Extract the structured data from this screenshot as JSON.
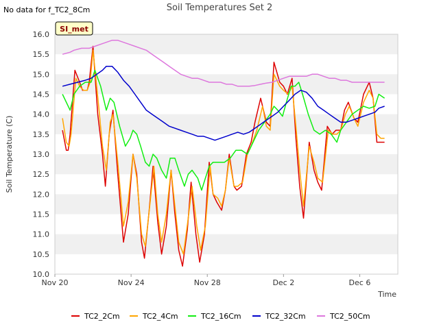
{
  "note": "No data for f_TC2_8Cm",
  "badge": "SI_met",
  "colors": {
    "band": "#f0f0f0",
    "axis": "#cccccc",
    "badge_fill": "#ffffc8",
    "TC2_2Cm": "#dd0000",
    "TC2_4Cm": "#ffa500",
    "TC2_16Cm": "#11ee11",
    "TC2_32Cm": "#0000cc",
    "TC2_50Cm": "#dd77dd"
  },
  "chart_data": {
    "type": "line",
    "title": "Soil Temperatures Set 2",
    "xlabel": "Time",
    "ylabel": "Soil Temperature (C)",
    "xlim": [
      0,
      18
    ],
    "ylim": [
      10.0,
      16.0
    ],
    "x_ticks": [
      {
        "x": 0,
        "label": "Nov 20"
      },
      {
        "x": 4,
        "label": "Nov 24"
      },
      {
        "x": 8,
        "label": "Nov 28"
      },
      {
        "x": 12,
        "label": "Dec 2"
      },
      {
        "x": 16,
        "label": "Dec 6"
      }
    ],
    "y_ticks": [
      "10.0",
      "10.5",
      "11.0",
      "11.5",
      "12.0",
      "12.5",
      "13.0",
      "13.5",
      "14.0",
      "14.5",
      "15.0",
      "15.5",
      "16.0"
    ],
    "grid": "horizontal bands",
    "legend": "bottom",
    "series": [
      {
        "name": "TC2_2Cm",
        "color": "#dd0000",
        "x": [
          0.4,
          0.6,
          0.7,
          0.8,
          1.05,
          1.3,
          1.45,
          1.7,
          1.8,
          2.0,
          2.25,
          2.5,
          2.65,
          2.85,
          3.05,
          3.3,
          3.6,
          3.85,
          4.1,
          4.3,
          4.55,
          4.7,
          4.95,
          5.15,
          5.4,
          5.6,
          5.85,
          6.1,
          6.3,
          6.5,
          6.7,
          6.95,
          7.15,
          7.4,
          7.6,
          7.85,
          8.1,
          8.3,
          8.5,
          8.75,
          8.95,
          9.15,
          9.4,
          9.55,
          9.8,
          10.05,
          10.3,
          10.5,
          10.8,
          11.1,
          11.3,
          11.5,
          11.8,
          12.0,
          12.2,
          12.45,
          12.65,
          12.85,
          13.05,
          13.35,
          13.6,
          13.8,
          14.0,
          14.3,
          14.55,
          14.75,
          15.0,
          15.2,
          15.4,
          15.7,
          15.9,
          16.2,
          16.5,
          16.7,
          16.9,
          17.1,
          17.3
        ],
        "y": [
          13.6,
          13.1,
          13.1,
          13.5,
          15.1,
          14.8,
          14.6,
          14.6,
          14.8,
          15.7,
          14.0,
          13.0,
          12.2,
          13.5,
          14.1,
          12.5,
          10.8,
          11.5,
          13.0,
          12.5,
          10.8,
          10.4,
          11.6,
          12.7,
          11.3,
          10.5,
          11.2,
          12.6,
          11.5,
          10.6,
          10.2,
          11.1,
          12.3,
          11.0,
          10.3,
          11.0,
          12.8,
          12.0,
          11.8,
          11.6,
          12.1,
          13.0,
          12.2,
          12.1,
          12.2,
          13.0,
          13.3,
          13.8,
          14.4,
          13.8,
          13.7,
          15.3,
          14.8,
          14.7,
          14.5,
          14.9,
          13.4,
          12.2,
          11.4,
          13.3,
          12.6,
          12.3,
          12.1,
          13.7,
          13.5,
          13.6,
          13.6,
          14.1,
          14.3,
          13.9,
          13.8,
          14.5,
          14.8,
          14.4,
          13.3,
          13.3,
          13.3
        ]
      },
      {
        "name": "TC2_4Cm",
        "color": "#ffa500",
        "x": [
          0.4,
          0.6,
          0.75,
          0.85,
          1.1,
          1.3,
          1.5,
          1.7,
          1.85,
          2.0,
          2.3,
          2.5,
          2.7,
          2.9,
          3.05,
          3.3,
          3.6,
          3.85,
          4.1,
          4.3,
          4.55,
          4.75,
          5.0,
          5.2,
          5.4,
          5.6,
          5.85,
          6.1,
          6.3,
          6.5,
          6.75,
          7.0,
          7.2,
          7.45,
          7.65,
          7.9,
          8.15,
          8.3,
          8.55,
          8.75,
          8.95,
          9.15,
          9.4,
          9.6,
          9.85,
          10.1,
          10.3,
          10.6,
          10.9,
          11.1,
          11.3,
          11.5,
          11.8,
          12.0,
          12.25,
          12.45,
          12.65,
          12.85,
          13.05,
          13.35,
          13.6,
          13.8,
          14.05,
          14.35,
          14.6,
          14.8,
          15.0,
          15.25,
          15.45,
          15.7,
          15.9,
          16.2,
          16.5,
          16.7,
          16.9,
          17.1,
          17.3
        ],
        "y": [
          13.9,
          13.3,
          13.2,
          13.5,
          14.9,
          14.7,
          14.6,
          14.6,
          14.8,
          15.6,
          14.2,
          13.2,
          12.6,
          13.8,
          14.0,
          12.8,
          11.2,
          11.8,
          13.0,
          12.4,
          11.0,
          10.7,
          11.8,
          12.7,
          11.5,
          10.8,
          11.5,
          12.6,
          11.7,
          10.8,
          10.5,
          11.4,
          12.2,
          11.2,
          10.6,
          11.2,
          12.7,
          12.0,
          11.9,
          11.7,
          12.1,
          12.9,
          12.2,
          12.2,
          12.3,
          13.0,
          13.2,
          13.6,
          14.2,
          13.7,
          13.6,
          15.0,
          14.7,
          14.6,
          14.5,
          14.7,
          13.7,
          12.6,
          11.7,
          13.2,
          12.8,
          12.4,
          12.3,
          13.6,
          13.5,
          13.5,
          13.6,
          14.0,
          14.2,
          13.9,
          13.7,
          14.3,
          14.6,
          14.4,
          13.5,
          13.4,
          13.4
        ]
      },
      {
        "name": "TC2_16Cm",
        "color": "#11ee11",
        "x": [
          0.4,
          0.8,
          1.0,
          1.3,
          1.6,
          1.9,
          2.1,
          2.4,
          2.7,
          2.9,
          3.1,
          3.4,
          3.7,
          3.95,
          4.1,
          4.3,
          4.5,
          4.75,
          4.95,
          5.15,
          5.35,
          5.6,
          5.85,
          6.05,
          6.3,
          6.5,
          6.8,
          7.0,
          7.2,
          7.5,
          7.7,
          7.9,
          8.1,
          8.3,
          8.6,
          8.9,
          9.2,
          9.5,
          9.8,
          10.1,
          10.4,
          10.7,
          11.0,
          11.3,
          11.5,
          11.7,
          11.95,
          12.15,
          12.4,
          12.6,
          12.8,
          13.0,
          13.3,
          13.6,
          13.9,
          14.2,
          14.5,
          14.8,
          15.0,
          15.3,
          15.6,
          15.9,
          16.2,
          16.5,
          16.8,
          17.0,
          17.3
        ],
        "y": [
          14.5,
          14.1,
          14.5,
          14.7,
          14.8,
          14.8,
          15.1,
          14.7,
          14.1,
          14.4,
          14.3,
          13.7,
          13.2,
          13.4,
          13.6,
          13.5,
          13.2,
          12.8,
          12.7,
          13.0,
          12.9,
          12.6,
          12.4,
          12.9,
          12.9,
          12.6,
          12.2,
          12.5,
          12.6,
          12.4,
          12.1,
          12.4,
          12.7,
          12.8,
          12.8,
          12.8,
          12.9,
          13.1,
          13.1,
          13.0,
          13.3,
          13.6,
          13.8,
          14.0,
          14.2,
          14.1,
          13.95,
          14.3,
          14.7,
          14.7,
          14.8,
          14.5,
          14.0,
          13.6,
          13.5,
          13.6,
          13.5,
          13.3,
          13.6,
          13.8,
          14.0,
          14.1,
          14.2,
          14.15,
          14.2,
          14.5,
          14.4
        ]
      },
      {
        "name": "TC2_32Cm",
        "color": "#0000cc",
        "x": [
          0.4,
          0.8,
          1.2,
          1.6,
          1.9,
          2.2,
          2.5,
          2.7,
          3.0,
          3.3,
          3.6,
          3.9,
          4.2,
          4.5,
          4.8,
          5.1,
          5.4,
          5.7,
          6.0,
          6.3,
          6.6,
          6.9,
          7.2,
          7.5,
          7.8,
          8.1,
          8.4,
          8.7,
          9.0,
          9.3,
          9.6,
          9.9,
          10.2,
          10.5,
          10.8,
          11.1,
          11.4,
          11.7,
          12.0,
          12.3,
          12.6,
          12.9,
          13.2,
          13.5,
          13.8,
          14.1,
          14.4,
          14.7,
          15.0,
          15.3,
          15.6,
          15.9,
          16.2,
          16.5,
          16.8,
          17.0,
          17.3
        ],
        "y": [
          14.7,
          14.75,
          14.8,
          14.85,
          14.9,
          15.0,
          15.1,
          15.2,
          15.2,
          15.05,
          14.85,
          14.7,
          14.5,
          14.3,
          14.1,
          14.0,
          13.9,
          13.8,
          13.7,
          13.65,
          13.6,
          13.55,
          13.5,
          13.45,
          13.45,
          13.4,
          13.35,
          13.4,
          13.45,
          13.5,
          13.55,
          13.5,
          13.55,
          13.65,
          13.75,
          13.85,
          13.95,
          14.05,
          14.2,
          14.35,
          14.5,
          14.6,
          14.55,
          14.4,
          14.2,
          14.1,
          14.0,
          13.9,
          13.8,
          13.8,
          13.85,
          13.9,
          13.95,
          14.0,
          14.05,
          14.15,
          14.2
        ]
      },
      {
        "name": "TC2_50Cm",
        "color": "#dd77dd",
        "x": [
          0.4,
          0.8,
          1.0,
          1.4,
          1.8,
          2.1,
          2.4,
          2.7,
          3.0,
          3.3,
          3.6,
          3.9,
          4.2,
          4.5,
          4.8,
          5.1,
          5.4,
          5.7,
          6.0,
          6.3,
          6.6,
          6.9,
          7.2,
          7.5,
          7.8,
          8.1,
          8.4,
          8.7,
          9.0,
          9.3,
          9.6,
          9.9,
          10.2,
          10.5,
          10.8,
          11.1,
          11.4,
          11.7,
          12.0,
          12.3,
          12.6,
          12.9,
          13.2,
          13.5,
          13.8,
          14.1,
          14.4,
          14.7,
          15.0,
          15.3,
          15.6,
          15.9,
          16.2,
          16.5,
          16.8,
          17.0,
          17.3
        ],
        "y": [
          15.5,
          15.55,
          15.6,
          15.65,
          15.65,
          15.7,
          15.75,
          15.8,
          15.85,
          15.85,
          15.8,
          15.75,
          15.7,
          15.65,
          15.6,
          15.5,
          15.4,
          15.3,
          15.2,
          15.1,
          15.0,
          14.95,
          14.9,
          14.9,
          14.85,
          14.8,
          14.8,
          14.8,
          14.75,
          14.75,
          14.7,
          14.7,
          14.7,
          14.72,
          14.75,
          14.78,
          14.8,
          14.85,
          14.9,
          14.95,
          14.95,
          14.95,
          14.95,
          15.0,
          15.0,
          14.95,
          14.9,
          14.9,
          14.85,
          14.85,
          14.8,
          14.8,
          14.8,
          14.8,
          14.8,
          14.8,
          14.8
        ]
      }
    ]
  }
}
